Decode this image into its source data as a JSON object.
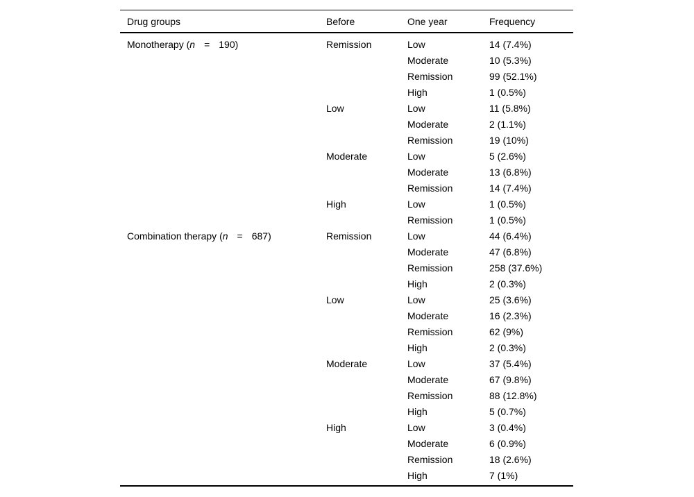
{
  "table": {
    "columns": [
      {
        "key": "drug-groups",
        "label": "Drug groups"
      },
      {
        "key": "before",
        "label": "Before"
      },
      {
        "key": "one-year",
        "label": "One year"
      },
      {
        "key": "frequency",
        "label": "Frequency"
      }
    ],
    "groups": [
      {
        "label_prefix": "Monotherapy (",
        "label_var": "n",
        "label_eq": "=",
        "label_suffix": "190)",
        "blocks": [
          {
            "before": "Remission",
            "rows": [
              {
                "one_year": "Low",
                "frequency": "14 (7.4%)"
              },
              {
                "one_year": "Moderate",
                "frequency": "10 (5.3%)"
              },
              {
                "one_year": "Remission",
                "frequency": "99 (52.1%)"
              },
              {
                "one_year": "High",
                "frequency": "1 (0.5%)"
              }
            ]
          },
          {
            "before": "Low",
            "rows": [
              {
                "one_year": "Low",
                "frequency": "11 (5.8%)"
              },
              {
                "one_year": "Moderate",
                "frequency": "2 (1.1%)"
              },
              {
                "one_year": "Remission",
                "frequency": "19 (10%)"
              }
            ]
          },
          {
            "before": "Moderate",
            "rows": [
              {
                "one_year": "Low",
                "frequency": "5 (2.6%)"
              },
              {
                "one_year": "Moderate",
                "frequency": "13 (6.8%)"
              },
              {
                "one_year": "Remission",
                "frequency": "14 (7.4%)"
              }
            ]
          },
          {
            "before": "High",
            "rows": [
              {
                "one_year": "Low",
                "frequency": "1 (0.5%)"
              },
              {
                "one_year": "Remission",
                "frequency": "1 (0.5%)"
              }
            ]
          }
        ]
      },
      {
        "label_prefix": "Combination therapy (",
        "label_var": "n",
        "label_eq": "=",
        "label_suffix": "687)",
        "blocks": [
          {
            "before": "Remission",
            "rows": [
              {
                "one_year": "Low",
                "frequency": "44 (6.4%)"
              },
              {
                "one_year": "Moderate",
                "frequency": "47 (6.8%)"
              },
              {
                "one_year": "Remission",
                "frequency": "258 (37.6%)"
              },
              {
                "one_year": "High",
                "frequency": "2 (0.3%)"
              }
            ]
          },
          {
            "before": "Low",
            "rows": [
              {
                "one_year": "Low",
                "frequency": "25 (3.6%)"
              },
              {
                "one_year": "Moderate",
                "frequency": "16 (2.3%)"
              },
              {
                "one_year": "Remission",
                "frequency": "62 (9%)"
              },
              {
                "one_year": "High",
                "frequency": "2 (0.3%)"
              }
            ]
          },
          {
            "before": "Moderate",
            "rows": [
              {
                "one_year": "Low",
                "frequency": "37 (5.4%)"
              },
              {
                "one_year": "Moderate",
                "frequency": "67 (9.8%)"
              },
              {
                "one_year": "Remission",
                "frequency": "88 (12.8%)"
              },
              {
                "one_year": "High",
                "frequency": "5 (0.7%)"
              }
            ]
          },
          {
            "before": "High",
            "rows": [
              {
                "one_year": "Low",
                "frequency": "3 (0.4%)"
              },
              {
                "one_year": "Moderate",
                "frequency": "6 (0.9%)"
              },
              {
                "one_year": "Remission",
                "frequency": "18 (2.6%)"
              },
              {
                "one_year": "High",
                "frequency": "7 (1%)"
              }
            ]
          }
        ]
      }
    ]
  },
  "colors": {
    "text": "#000000",
    "background": "#ffffff",
    "rule": "#000000"
  }
}
